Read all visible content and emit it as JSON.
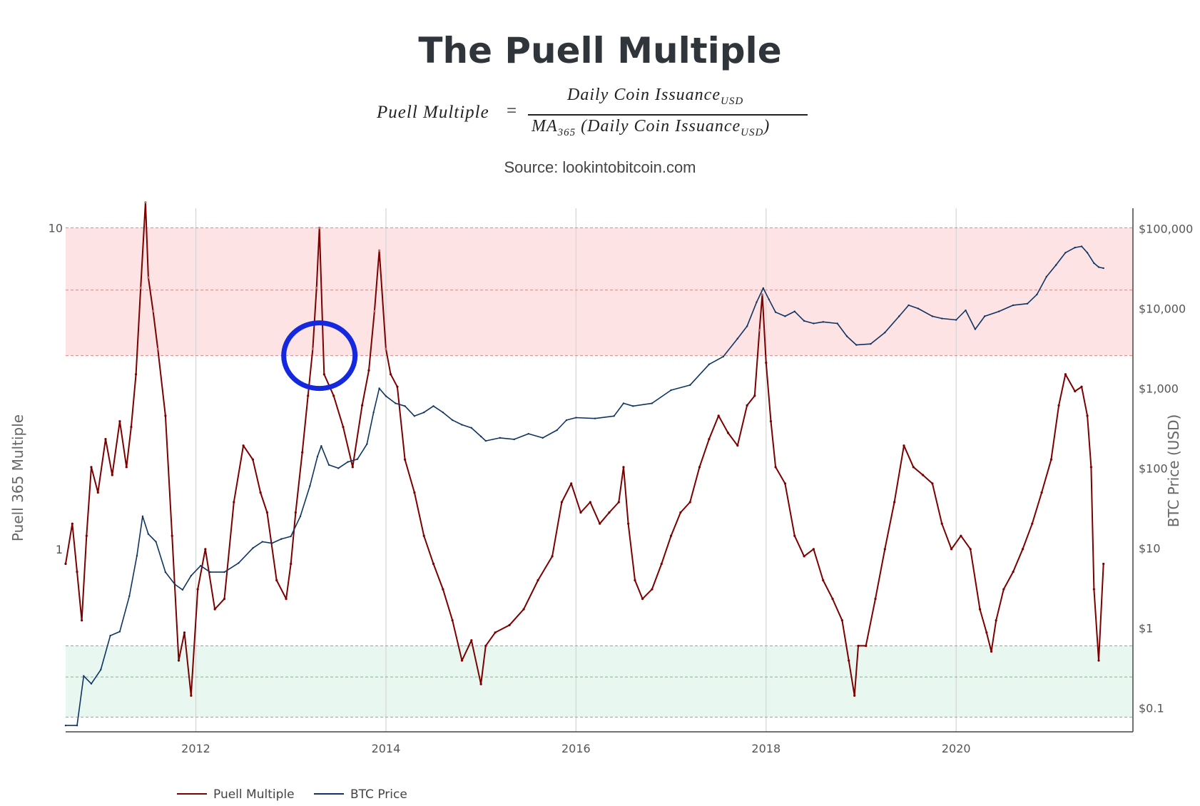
{
  "title": "The Puell Multiple",
  "formula": {
    "lhs": "Puell Multiple",
    "equals": "=",
    "numerator": "Daily Coin Issuance",
    "numerator_sub": "USD",
    "denominator_prefix": "MA",
    "denominator_prefix_sub": "365",
    "denominator_open": " (Daily Coin Issuance",
    "denominator_sub": "USD",
    "denominator_close": ")"
  },
  "source": "Source: lookintobitcoin.com",
  "chart_data": {
    "type": "line",
    "title": "The Puell Multiple",
    "x_ticks": [
      "2012",
      "2014",
      "2016",
      "2018",
      "2020"
    ],
    "x_range": [
      2010.63,
      2021.86
    ],
    "y_left": {
      "label": "Puell 365 Multiple",
      "scale": "log",
      "ticks": [
        "1",
        "10"
      ],
      "range": [
        0.27,
        11.5
      ]
    },
    "y_right": {
      "label": "BTC Price (USD)",
      "scale": "log",
      "ticks": [
        "$0.1",
        "$1",
        "$10",
        "$100",
        "$1,000",
        "$10,000",
        "$100,000"
      ],
      "range": [
        0.05,
        180000
      ]
    },
    "bands": [
      {
        "zone": "high",
        "from": 4,
        "to": 10,
        "color": "#fde3e3"
      },
      {
        "zone": "low",
        "from": 0.3,
        "to": 0.5,
        "color": "#e8f8f0"
      }
    ],
    "band_lines": [
      10,
      6.4,
      4,
      0.5,
      0.4,
      0.3
    ],
    "grid": "vertical",
    "legend": "bottom-left",
    "highlight_circle": {
      "x": 2013.3,
      "y": 4.0,
      "color": "#1428e0"
    },
    "series": [
      {
        "name": "Puell Multiple",
        "axis": "left",
        "color": "#7b0000",
        "highlight_color": "#b07070",
        "x": [
          2010.63,
          2010.7,
          2010.75,
          2010.8,
          2010.85,
          2010.9,
          2010.97,
          2011.05,
          2011.12,
          2011.2,
          2011.27,
          2011.32,
          2011.37,
          2011.42,
          2011.47,
          2011.5,
          2011.55,
          2011.6,
          2011.68,
          2011.75,
          2011.82,
          2011.88,
          2011.95,
          2012.02,
          2012.1,
          2012.2,
          2012.3,
          2012.4,
          2012.5,
          2012.6,
          2012.68,
          2012.75,
          2012.85,
          2012.95,
          2013.0,
          2013.05,
          2013.12,
          2013.18,
          2013.23,
          2013.27,
          2013.3,
          2013.35,
          2013.45,
          2013.55,
          2013.65,
          2013.75,
          2013.82,
          2013.88,
          2013.93,
          2014.0,
          2014.05,
          2014.12,
          2014.2,
          2014.3,
          2014.4,
          2014.5,
          2014.6,
          2014.7,
          2014.8,
          2014.9,
          2015.0,
          2015.05,
          2015.15,
          2015.3,
          2015.45,
          2015.6,
          2015.75,
          2015.85,
          2015.95,
          2016.05,
          2016.15,
          2016.25,
          2016.35,
          2016.45,
          2016.5,
          2016.55,
          2016.62,
          2016.7,
          2016.8,
          2016.9,
          2017.0,
          2017.1,
          2017.2,
          2017.3,
          2017.4,
          2017.5,
          2017.6,
          2017.7,
          2017.8,
          2017.88,
          2017.93,
          2017.96,
          2018.0,
          2018.05,
          2018.1,
          2018.2,
          2018.3,
          2018.4,
          2018.5,
          2018.6,
          2018.7,
          2018.8,
          2018.87,
          2018.93,
          2018.97,
          2019.05,
          2019.15,
          2019.25,
          2019.35,
          2019.45,
          2019.55,
          2019.65,
          2019.75,
          2019.85,
          2019.95,
          2020.05,
          2020.15,
          2020.25,
          2020.32,
          2020.37,
          2020.42,
          2020.5,
          2020.6,
          2020.7,
          2020.8,
          2020.9,
          2021.0,
          2021.08,
          2021.15,
          2021.25,
          2021.32,
          2021.38,
          2021.42,
          2021.45,
          2021.5,
          2021.55
        ],
        "y": [
          0.9,
          1.2,
          0.85,
          0.6,
          1.1,
          1.8,
          1.5,
          2.2,
          1.7,
          2.5,
          1.8,
          2.4,
          3.5,
          6.5,
          12.0,
          7.0,
          5.5,
          4.2,
          2.6,
          1.1,
          0.45,
          0.55,
          0.35,
          0.75,
          1.0,
          0.65,
          0.7,
          1.4,
          2.1,
          1.9,
          1.5,
          1.3,
          0.8,
          0.7,
          0.9,
          1.3,
          2.0,
          3.0,
          4.2,
          6.5,
          10.0,
          3.5,
          3.0,
          2.4,
          1.8,
          2.8,
          3.6,
          5.5,
          8.5,
          4.2,
          3.5,
          3.2,
          1.9,
          1.5,
          1.1,
          0.9,
          0.75,
          0.6,
          0.45,
          0.52,
          0.38,
          0.5,
          0.55,
          0.58,
          0.65,
          0.8,
          0.95,
          1.4,
          1.6,
          1.3,
          1.4,
          1.2,
          1.3,
          1.4,
          1.8,
          1.2,
          0.8,
          0.7,
          0.75,
          0.9,
          1.1,
          1.3,
          1.4,
          1.8,
          2.2,
          2.6,
          2.3,
          2.1,
          2.8,
          3.0,
          4.8,
          6.2,
          3.8,
          2.5,
          1.8,
          1.6,
          1.1,
          0.95,
          1.0,
          0.8,
          0.7,
          0.6,
          0.45,
          0.35,
          0.5,
          0.5,
          0.7,
          1.0,
          1.4,
          2.1,
          1.8,
          1.7,
          1.6,
          1.2,
          1.0,
          1.1,
          1.0,
          0.65,
          0.55,
          0.48,
          0.6,
          0.75,
          0.85,
          1.0,
          1.2,
          1.5,
          1.9,
          2.8,
          3.5,
          3.1,
          3.2,
          2.6,
          1.8,
          0.75,
          0.45,
          0.9
        ]
      },
      {
        "name": "BTC Price",
        "axis": "right",
        "color": "#0f3463",
        "x": [
          2010.63,
          2010.75,
          2010.82,
          2010.9,
          2011.0,
          2011.1,
          2011.2,
          2011.3,
          2011.38,
          2011.44,
          2011.5,
          2011.58,
          2011.68,
          2011.78,
          2011.86,
          2011.95,
          2012.05,
          2012.15,
          2012.3,
          2012.45,
          2012.6,
          2012.7,
          2012.8,
          2012.9,
          2013.0,
          2013.1,
          2013.2,
          2013.28,
          2013.32,
          2013.4,
          2013.5,
          2013.6,
          2013.7,
          2013.8,
          2013.87,
          2013.93,
          2014.0,
          2014.1,
          2014.2,
          2014.3,
          2014.4,
          2014.5,
          2014.6,
          2014.7,
          2014.8,
          2014.9,
          2015.0,
          2015.05,
          2015.2,
          2015.35,
          2015.5,
          2015.65,
          2015.8,
          2015.9,
          2016.0,
          2016.2,
          2016.4,
          2016.5,
          2016.6,
          2016.8,
          2017.0,
          2017.2,
          2017.4,
          2017.55,
          2017.7,
          2017.8,
          2017.9,
          2017.97,
          2018.03,
          2018.1,
          2018.2,
          2018.3,
          2018.4,
          2018.5,
          2018.6,
          2018.75,
          2018.85,
          2018.95,
          2019.1,
          2019.25,
          2019.4,
          2019.5,
          2019.6,
          2019.75,
          2019.85,
          2020.0,
          2020.1,
          2020.2,
          2020.3,
          2020.45,
          2020.6,
          2020.75,
          2020.85,
          2020.95,
          2021.05,
          2021.15,
          2021.25,
          2021.32,
          2021.38,
          2021.45,
          2021.5,
          2021.55
        ],
        "y": [
          0.06,
          0.06,
          0.25,
          0.2,
          0.3,
          0.8,
          0.9,
          2.5,
          8.0,
          25.0,
          15.0,
          12.0,
          5.0,
          3.5,
          3.0,
          4.5,
          6.0,
          5.0,
          5.0,
          6.5,
          10.0,
          12.0,
          11.5,
          13.0,
          14.0,
          25.0,
          60.0,
          140.0,
          190.0,
          110.0,
          100.0,
          120.0,
          130.0,
          200.0,
          500.0,
          1000.0,
          800.0,
          650.0,
          600.0,
          450.0,
          500.0,
          600.0,
          500.0,
          400.0,
          350.0,
          320.0,
          250.0,
          220.0,
          240.0,
          230.0,
          270.0,
          240.0,
          300.0,
          400.0,
          430.0,
          420.0,
          450.0,
          650.0,
          600.0,
          650.0,
          950.0,
          1100.0,
          2000.0,
          2500.0,
          4200.0,
          6000.0,
          12000.0,
          18000.0,
          13000.0,
          9000.0,
          8000.0,
          9200.0,
          7000.0,
          6500.0,
          6800.0,
          6500.0,
          4500.0,
          3500.0,
          3600.0,
          5000.0,
          8000.0,
          11000.0,
          10000.0,
          8000.0,
          7500.0,
          7200.0,
          9500.0,
          5500.0,
          8000.0,
          9200.0,
          11000.0,
          11500.0,
          15000.0,
          25000.0,
          35000.0,
          50000.0,
          58000.0,
          60000.0,
          50000.0,
          37000.0,
          33000.0,
          32000.0
        ]
      }
    ]
  }
}
